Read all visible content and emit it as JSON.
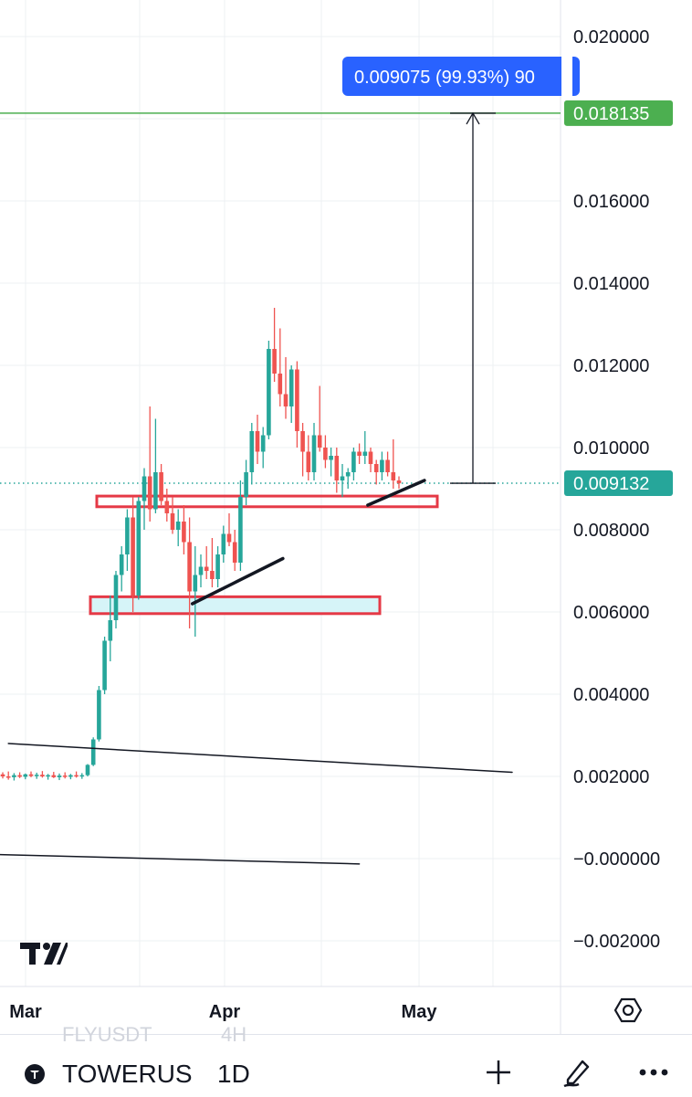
{
  "chart_data": {
    "type": "candlestick",
    "symbol": "TOWERUS",
    "timeframe": "1D",
    "ghost_symbol": "FLYUSDT",
    "ghost_timeframe": "4H",
    "y_ticks": [
      "0.020000",
      "0.016000",
      "0.014000",
      "0.012000",
      "0.010000",
      "0.008000",
      "0.006000",
      "0.004000",
      "0.002000",
      "−0.000000",
      "−0.002000"
    ],
    "y_tick_values": [
      0.02,
      0.016,
      0.014,
      0.012,
      0.01,
      0.008,
      0.006,
      0.004,
      0.002,
      0.0,
      -0.002
    ],
    "x_ticks": [
      "Mar",
      "Apr",
      "May"
    ],
    "ylim": [
      -0.0026,
      0.0218
    ],
    "last_price": "0.009132",
    "last_price_value": 0.009132,
    "target_price": "0.018135",
    "target_price_value": 0.018135,
    "measure_label": "0.009075 (99.93%) 90",
    "colors": {
      "up": "#26a69a",
      "down": "#ef5350",
      "target": "#4caf50",
      "measure": "#2962ff",
      "zone_border": "#e53946",
      "zone_fill": "#d6f4f8"
    },
    "candles": [
      [
        0.00205,
        0.0021,
        0.00195,
        0.002
      ],
      [
        0.002,
        0.00212,
        0.00192,
        0.00198
      ],
      [
        0.00198,
        0.00208,
        0.0019,
        0.00203
      ],
      [
        0.00203,
        0.0021,
        0.00196,
        0.00199
      ],
      [
        0.00199,
        0.00207,
        0.00193,
        0.00205
      ],
      [
        0.00205,
        0.00212,
        0.00198,
        0.00201
      ],
      [
        0.00201,
        0.00209,
        0.00194,
        0.00204
      ],
      [
        0.00204,
        0.00213,
        0.00197,
        0.002
      ],
      [
        0.002,
        0.00206,
        0.00192,
        0.00203
      ],
      [
        0.00203,
        0.00211,
        0.00196,
        0.00198
      ],
      [
        0.00198,
        0.00207,
        0.00191,
        0.00202
      ],
      [
        0.00202,
        0.0021,
        0.00195,
        0.00199
      ],
      [
        0.00199,
        0.00206,
        0.00193,
        0.00203
      ],
      [
        0.00203,
        0.00212,
        0.00197,
        0.002
      ],
      [
        0.002,
        0.00208,
        0.00194,
        0.00203
      ],
      [
        0.00203,
        0.0023,
        0.002,
        0.00228
      ],
      [
        0.00228,
        0.00295,
        0.00225,
        0.0029
      ],
      [
        0.0029,
        0.0042,
        0.00285,
        0.0041
      ],
      [
        0.0041,
        0.0054,
        0.004,
        0.0053
      ],
      [
        0.0053,
        0.0064,
        0.0048,
        0.0058
      ],
      [
        0.0058,
        0.007,
        0.0056,
        0.0069
      ],
      [
        0.0069,
        0.0076,
        0.0065,
        0.0074
      ],
      [
        0.0074,
        0.0085,
        0.007,
        0.0083
      ],
      [
        0.0083,
        0.0088,
        0.006,
        0.0064
      ],
      [
        0.0064,
        0.0088,
        0.0063,
        0.0087
      ],
      [
        0.0087,
        0.0095,
        0.008,
        0.0093
      ],
      [
        0.0093,
        0.011,
        0.0082,
        0.0085
      ],
      [
        0.0085,
        0.0107,
        0.0084,
        0.0094
      ],
      [
        0.0094,
        0.0096,
        0.0086,
        0.0087
      ],
      [
        0.0087,
        0.009,
        0.0082,
        0.0084
      ],
      [
        0.0084,
        0.0088,
        0.0079,
        0.008
      ],
      [
        0.008,
        0.0085,
        0.0076,
        0.0082
      ],
      [
        0.0082,
        0.0086,
        0.0074,
        0.0077
      ],
      [
        0.0077,
        0.0083,
        0.0056,
        0.0065
      ],
      [
        0.0065,
        0.0076,
        0.0054,
        0.0069
      ],
      [
        0.0069,
        0.0074,
        0.0066,
        0.0071
      ],
      [
        0.0071,
        0.0076,
        0.0068,
        0.007
      ],
      [
        0.007,
        0.0078,
        0.0066,
        0.0068
      ],
      [
        0.0068,
        0.0076,
        0.0066,
        0.0074
      ],
      [
        0.0074,
        0.0081,
        0.0072,
        0.0079
      ],
      [
        0.0079,
        0.0084,
        0.0076,
        0.0077
      ],
      [
        0.0077,
        0.008,
        0.007,
        0.0072
      ],
      [
        0.0072,
        0.0092,
        0.007,
        0.0088
      ],
      [
        0.0088,
        0.0097,
        0.0086,
        0.0094
      ],
      [
        0.0094,
        0.0106,
        0.0091,
        0.0104
      ],
      [
        0.0104,
        0.0108,
        0.0096,
        0.0099
      ],
      [
        0.0099,
        0.0105,
        0.0095,
        0.0103
      ],
      [
        0.0103,
        0.0126,
        0.0102,
        0.0124
      ],
      [
        0.0124,
        0.0134,
        0.0116,
        0.0118
      ],
      [
        0.0118,
        0.0129,
        0.011,
        0.0113
      ],
      [
        0.0113,
        0.0122,
        0.0107,
        0.011
      ],
      [
        0.011,
        0.012,
        0.0106,
        0.0119
      ],
      [
        0.0119,
        0.0121,
        0.01,
        0.0104
      ],
      [
        0.0104,
        0.0106,
        0.0093,
        0.0099
      ],
      [
        0.0099,
        0.0103,
        0.0092,
        0.0094
      ],
      [
        0.0094,
        0.0106,
        0.0092,
        0.0103
      ],
      [
        0.0103,
        0.0115,
        0.0099,
        0.01
      ],
      [
        0.01,
        0.0103,
        0.0095,
        0.0097
      ],
      [
        0.0097,
        0.01,
        0.0093,
        0.0098
      ],
      [
        0.0098,
        0.01,
        0.0089,
        0.0092
      ],
      [
        0.0092,
        0.0096,
        0.0088,
        0.0093
      ],
      [
        0.0093,
        0.0095,
        0.009,
        0.0094
      ],
      [
        0.0094,
        0.01,
        0.0092,
        0.0099
      ],
      [
        0.0099,
        0.0101,
        0.0096,
        0.0098
      ],
      [
        0.0098,
        0.0104,
        0.0096,
        0.0099
      ],
      [
        0.0099,
        0.01,
        0.0094,
        0.0096
      ],
      [
        0.0096,
        0.0097,
        0.0091,
        0.0094
      ],
      [
        0.0094,
        0.0099,
        0.0092,
        0.0097
      ],
      [
        0.0097,
        0.0099,
        0.0093,
        0.0094
      ],
      [
        0.0094,
        0.0102,
        0.009,
        0.0092
      ],
      [
        0.0092,
        0.0093,
        0.009,
        0.00913
      ]
    ],
    "zones": [
      {
        "y_top": 0.00882,
        "y_bottom": 0.00856,
        "fill": false
      },
      {
        "y_top": 0.00637,
        "y_bottom": 0.00596,
        "fill": true
      }
    ],
    "trend_lines": [
      {
        "p1": [
          1,
          0.0028
        ],
        "p2": [
          90,
          0.0021
        ],
        "width": 1.5
      },
      {
        "p1": [
          -1,
          0.0001
        ],
        "p2": [
          63,
          -0.00013
        ],
        "width": 1.5
      },
      {
        "p1": [
          33.5,
          0.0062
        ],
        "p2": [
          49.5,
          0.0073
        ],
        "width": 3.5
      },
      {
        "p1": [
          64.5,
          0.0086
        ],
        "p2": [
          74.5,
          0.0092
        ],
        "width": 3.5
      }
    ]
  }
}
